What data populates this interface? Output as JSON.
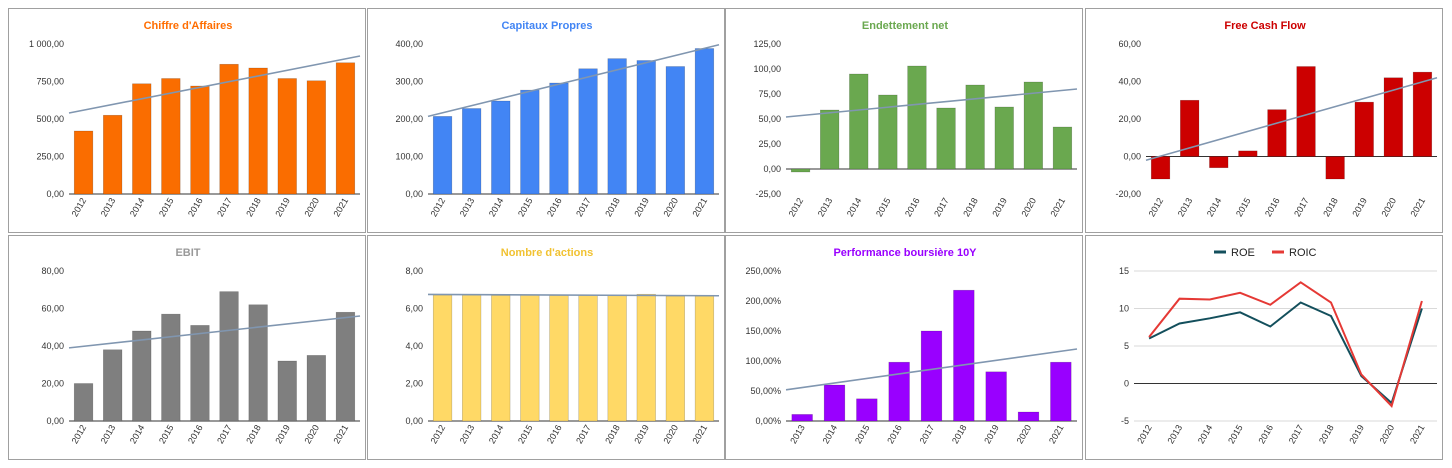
{
  "dashboard": {
    "panels": [
      {
        "chart_data": {
          "type": "bar",
          "title": "Chiffre d'Affaires",
          "title_color": "#ff6d00",
          "bar_color": "#fa6d00",
          "categories": [
            "2012",
            "2013",
            "2014",
            "2015",
            "2016",
            "2017",
            "2018",
            "2019",
            "2020",
            "2021"
          ],
          "values": [
            420,
            525,
            735,
            770,
            720,
            865,
            840,
            770,
            755,
            875
          ],
          "ylim": [
            0,
            1000
          ],
          "yticks": [
            0,
            250,
            500,
            750,
            1000
          ],
          "ytick_labels": [
            "0,00",
            "250,00",
            "500,00",
            "750,00",
            "1 000,00"
          ],
          "trend": [
            540,
            920
          ],
          "grid": false
        }
      },
      {
        "chart_data": {
          "type": "bar",
          "title": "Capitaux Propres",
          "title_color": "#4285f4",
          "bar_color": "#4285f4",
          "categories": [
            "2012",
            "2013",
            "2014",
            "2015",
            "2016",
            "2017",
            "2018",
            "2019",
            "2020",
            "2021"
          ],
          "values": [
            207,
            228,
            248,
            277,
            296,
            334,
            361,
            356,
            340,
            388
          ],
          "ylim": [
            0,
            400
          ],
          "yticks": [
            0,
            100,
            200,
            300,
            400
          ],
          "ytick_labels": [
            "0,00",
            "100,00",
            "200,00",
            "300,00",
            "400,00"
          ],
          "trend": [
            207,
            398
          ],
          "grid": false
        }
      },
      {
        "chart_data": {
          "type": "bar",
          "title": "Endettement net",
          "title_color": "#6aa84f",
          "bar_color": "#6aa84f",
          "categories": [
            "2012",
            "2013",
            "2014",
            "2015",
            "2016",
            "2017",
            "2018",
            "2019",
            "2020",
            "2021"
          ],
          "values": [
            -3,
            59,
            95,
            74,
            103,
            61,
            84,
            62,
            87,
            42
          ],
          "ylim": [
            -25,
            125
          ],
          "yticks": [
            -25,
            0,
            25,
            50,
            75,
            100,
            125
          ],
          "ytick_labels": [
            "-25,00",
            "0,00",
            "25,00",
            "50,00",
            "75,00",
            "100,00",
            "125,00"
          ],
          "trend": [
            52,
            80
          ],
          "grid": false
        }
      },
      {
        "chart_data": {
          "type": "bar",
          "title": "Free Cash Flow",
          "title_color": "#cc0000",
          "bar_color": "#cc0000",
          "categories": [
            "2012",
            "2013",
            "2014",
            "2015",
            "2016",
            "2017",
            "2018",
            "2019",
            "2020",
            "2021"
          ],
          "values": [
            -12,
            30,
            -6,
            3,
            25,
            48,
            -12,
            29,
            42,
            45
          ],
          "ylim": [
            -20,
            60
          ],
          "yticks": [
            -20,
            0,
            20,
            40,
            60
          ],
          "ytick_labels": [
            "-20,00",
            "0,00",
            "20,00",
            "40,00",
            "60,00"
          ],
          "trend": [
            -2,
            42
          ],
          "grid": false
        }
      },
      {
        "chart_data": {
          "type": "bar",
          "title": "EBIT",
          "title_color": "#999999",
          "bar_color": "#7f7f7f",
          "categories": [
            "2012",
            "2013",
            "2014",
            "2015",
            "2016",
            "2017",
            "2018",
            "2019",
            "2020",
            "2021"
          ],
          "values": [
            20,
            38,
            48,
            57,
            51,
            69,
            62,
            32,
            35,
            58
          ],
          "ylim": [
            0,
            80
          ],
          "yticks": [
            0,
            20,
            40,
            60,
            80
          ],
          "ytick_labels": [
            "0,00",
            "20,00",
            "40,00",
            "60,00",
            "80,00"
          ],
          "trend": [
            39,
            56
          ],
          "grid": false
        }
      },
      {
        "chart_data": {
          "type": "bar",
          "title": "Nombre d'actions",
          "title_color": "#f1c232",
          "bar_color": "#ffd966",
          "categories": [
            "2012",
            "2013",
            "2014",
            "2015",
            "2016",
            "2017",
            "2018",
            "2019",
            "2020",
            "2021"
          ],
          "values": [
            6.72,
            6.72,
            6.7,
            6.72,
            6.7,
            6.72,
            6.72,
            6.76,
            6.66,
            6.66
          ],
          "ylim": [
            0,
            8
          ],
          "yticks": [
            0,
            2,
            4,
            6,
            8
          ],
          "ytick_labels": [
            "0,00",
            "2,00",
            "4,00",
            "6,00",
            "8,00"
          ],
          "trend": [
            6.75,
            6.68
          ],
          "grid": false
        }
      },
      {
        "chart_data": {
          "type": "bar",
          "title": "Performance boursière 10Y",
          "title_color": "#9900ff",
          "bar_color": "#9900ff",
          "categories": [
            "2013",
            "2014",
            "2015",
            "2016",
            "2017",
            "2018",
            "2019",
            "2020",
            "2021"
          ],
          "values": [
            11,
            60,
            37,
            98,
            150,
            218,
            82,
            15,
            98
          ],
          "ylim": [
            0,
            250
          ],
          "yticks": [
            0,
            50,
            100,
            150,
            200,
            250
          ],
          "ytick_labels": [
            "0,00%",
            "50,00%",
            "100,00%",
            "150,00%",
            "200,00%",
            "250,00%"
          ],
          "trend": [
            52,
            120
          ],
          "grid": false
        }
      },
      {
        "chart_data": {
          "type": "line",
          "title": "",
          "x": [
            "2012",
            "2013",
            "2014",
            "2015",
            "2016",
            "2017",
            "2018",
            "2019",
            "2020",
            "2021"
          ],
          "series": [
            {
              "name": "ROE",
              "color": "#134f5c",
              "values": [
                6,
                8,
                8.7,
                9.5,
                7.6,
                10.8,
                9,
                1,
                -2.6,
                10
              ]
            },
            {
              "name": "ROIC",
              "color": "#e53935",
              "values": [
                6.2,
                11.3,
                11.2,
                12.1,
                10.5,
                13.5,
                10.8,
                1.2,
                -3,
                11
              ]
            }
          ],
          "ylim": [
            -5,
            15
          ],
          "yticks": [
            -5,
            0,
            5,
            10,
            15
          ],
          "ytick_labels": [
            "-5",
            "0",
            "5",
            "10",
            "15"
          ],
          "grid": true,
          "legend_position": "top"
        }
      }
    ]
  }
}
